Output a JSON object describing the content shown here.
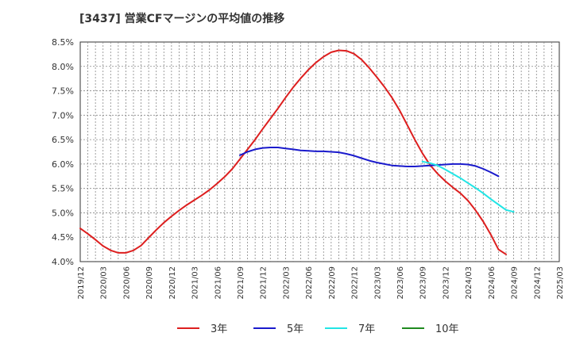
{
  "chart_data": {
    "type": "line",
    "title": "[3437]  営業CFマージンの平均値の推移",
    "xlabel": "",
    "ylabel": "",
    "ylim": [
      4.0,
      8.5
    ],
    "yticks": [
      4.0,
      4.5,
      5.0,
      5.5,
      6.0,
      6.5,
      7.0,
      7.5,
      8.0,
      8.5
    ],
    "ytick_labels": [
      "4.0%",
      "4.5%",
      "5.0%",
      "5.5%",
      "6.0%",
      "6.5%",
      "7.0%",
      "7.5%",
      "8.0%",
      "8.5%"
    ],
    "x_categories": [
      "2019/12",
      "2020/03",
      "2020/06",
      "2020/09",
      "2020/12",
      "2021/03",
      "2021/06",
      "2021/09",
      "2021/12",
      "2022/03",
      "2022/06",
      "2022/09",
      "2022/12",
      "2023/03",
      "2023/06",
      "2023/09",
      "2023/12",
      "2024/03",
      "2024/06",
      "2024/09",
      "2024/12",
      "2025/03"
    ],
    "grid": true,
    "legend_position": "bottom",
    "series": [
      {
        "name": "3年",
        "color": "#dd1f1f",
        "points": [
          [
            "2019/12",
            4.68
          ],
          [
            "2020/01",
            4.57
          ],
          [
            "2020/02",
            4.45
          ],
          [
            "2020/03",
            4.32
          ],
          [
            "2020/04",
            4.23
          ],
          [
            "2020/05",
            4.18
          ],
          [
            "2020/06",
            4.18
          ],
          [
            "2020/07",
            4.23
          ],
          [
            "2020/08",
            4.33
          ],
          [
            "2020/09",
            4.49
          ],
          [
            "2020/10",
            4.65
          ],
          [
            "2020/11",
            4.8
          ],
          [
            "2020/12",
            4.93
          ],
          [
            "2021/01",
            5.05
          ],
          [
            "2021/02",
            5.16
          ],
          [
            "2021/03",
            5.26
          ],
          [
            "2021/04",
            5.36
          ],
          [
            "2021/05",
            5.47
          ],
          [
            "2021/06",
            5.6
          ],
          [
            "2021/07",
            5.74
          ],
          [
            "2021/08",
            5.9
          ],
          [
            "2021/09",
            6.1
          ],
          [
            "2021/10",
            6.3
          ],
          [
            "2021/11",
            6.5
          ],
          [
            "2021/12",
            6.72
          ],
          [
            "2022/01",
            6.93
          ],
          [
            "2022/02",
            7.14
          ],
          [
            "2022/03",
            7.36
          ],
          [
            "2022/04",
            7.57
          ],
          [
            "2022/05",
            7.76
          ],
          [
            "2022/06",
            7.93
          ],
          [
            "2022/07",
            8.08
          ],
          [
            "2022/08",
            8.2
          ],
          [
            "2022/09",
            8.29
          ],
          [
            "2022/10",
            8.33
          ],
          [
            "2022/11",
            8.32
          ],
          [
            "2022/12",
            8.26
          ],
          [
            "2023/01",
            8.14
          ],
          [
            "2023/02",
            7.97
          ],
          [
            "2023/03",
            7.78
          ],
          [
            "2023/04",
            7.58
          ],
          [
            "2023/05",
            7.36
          ],
          [
            "2023/06",
            7.1
          ],
          [
            "2023/07",
            6.8
          ],
          [
            "2023/08",
            6.5
          ],
          [
            "2023/09",
            6.22
          ],
          [
            "2023/10",
            5.98
          ],
          [
            "2023/11",
            5.8
          ],
          [
            "2023/12",
            5.65
          ],
          [
            "2024/01",
            5.52
          ],
          [
            "2024/02",
            5.4
          ],
          [
            "2024/03",
            5.25
          ],
          [
            "2024/04",
            5.05
          ],
          [
            "2024/05",
            4.82
          ],
          [
            "2024/06",
            4.55
          ],
          [
            "2024/07",
            4.25
          ],
          [
            "2024/08",
            4.15
          ]
        ]
      },
      {
        "name": "5年",
        "color": "#1a1acc",
        "points": [
          [
            "2021/09",
            6.18
          ],
          [
            "2021/10",
            6.25
          ],
          [
            "2021/11",
            6.3
          ],
          [
            "2021/12",
            6.33
          ],
          [
            "2022/01",
            6.34
          ],
          [
            "2022/02",
            6.34
          ],
          [
            "2022/03",
            6.32
          ],
          [
            "2022/04",
            6.3
          ],
          [
            "2022/05",
            6.28
          ],
          [
            "2022/06",
            6.27
          ],
          [
            "2022/07",
            6.26
          ],
          [
            "2022/08",
            6.26
          ],
          [
            "2022/09",
            6.25
          ],
          [
            "2022/10",
            6.24
          ],
          [
            "2022/11",
            6.21
          ],
          [
            "2022/12",
            6.17
          ],
          [
            "2023/01",
            6.12
          ],
          [
            "2023/02",
            6.07
          ],
          [
            "2023/03",
            6.03
          ],
          [
            "2023/04",
            6.0
          ],
          [
            "2023/05",
            5.97
          ],
          [
            "2023/06",
            5.96
          ],
          [
            "2023/07",
            5.95
          ],
          [
            "2023/08",
            5.95
          ],
          [
            "2023/09",
            5.96
          ],
          [
            "2023/10",
            5.97
          ],
          [
            "2023/11",
            5.98
          ],
          [
            "2023/12",
            5.99
          ],
          [
            "2024/01",
            6.0
          ],
          [
            "2024/02",
            6.0
          ],
          [
            "2024/03",
            5.99
          ],
          [
            "2024/04",
            5.96
          ],
          [
            "2024/05",
            5.9
          ],
          [
            "2024/06",
            5.83
          ],
          [
            "2024/07",
            5.75
          ]
        ]
      },
      {
        "name": "7年",
        "color": "#22e5e5",
        "points": [
          [
            "2023/09",
            6.05
          ],
          [
            "2023/10",
            6.02
          ],
          [
            "2023/11",
            5.97
          ],
          [
            "2023/12",
            5.89
          ],
          [
            "2024/01",
            5.8
          ],
          [
            "2024/02",
            5.71
          ],
          [
            "2024/03",
            5.61
          ],
          [
            "2024/04",
            5.51
          ],
          [
            "2024/05",
            5.4
          ],
          [
            "2024/06",
            5.28
          ],
          [
            "2024/07",
            5.17
          ],
          [
            "2024/08",
            5.06
          ],
          [
            "2024/09",
            5.02
          ]
        ]
      },
      {
        "name": "10年",
        "color": "#1f8a1f",
        "points": []
      }
    ]
  }
}
